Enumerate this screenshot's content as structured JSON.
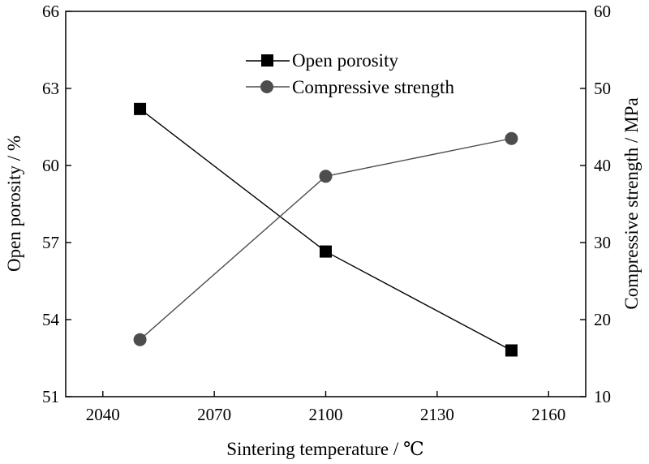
{
  "chart_data": {
    "type": "line",
    "x": [
      2050,
      2100,
      2150
    ],
    "series": [
      {
        "name": "Open porosity",
        "axis": "left",
        "values": [
          62.2,
          56.65,
          52.8
        ],
        "marker": "square",
        "color": "#000000"
      },
      {
        "name": "Compressive strength",
        "axis": "right",
        "values": [
          17.4,
          38.6,
          43.5
        ],
        "marker": "circle",
        "color": "#4d4d4d"
      }
    ],
    "xlabel": "Sintering temperature / ℃",
    "ylabel_left": "Open porosity / %",
    "ylabel_right": "Compressive strength / MPa",
    "xlim": [
      2030,
      2170
    ],
    "ylim_left": [
      51,
      66
    ],
    "ylim_right": [
      10,
      60
    ],
    "xticks": [
      2040,
      2070,
      2100,
      2130,
      2160
    ],
    "yticks_left": [
      51,
      54,
      57,
      60,
      63,
      66
    ],
    "yticks_right": [
      10,
      20,
      30,
      40,
      50,
      60
    ],
    "grid": false,
    "legend_position": "top-center"
  }
}
